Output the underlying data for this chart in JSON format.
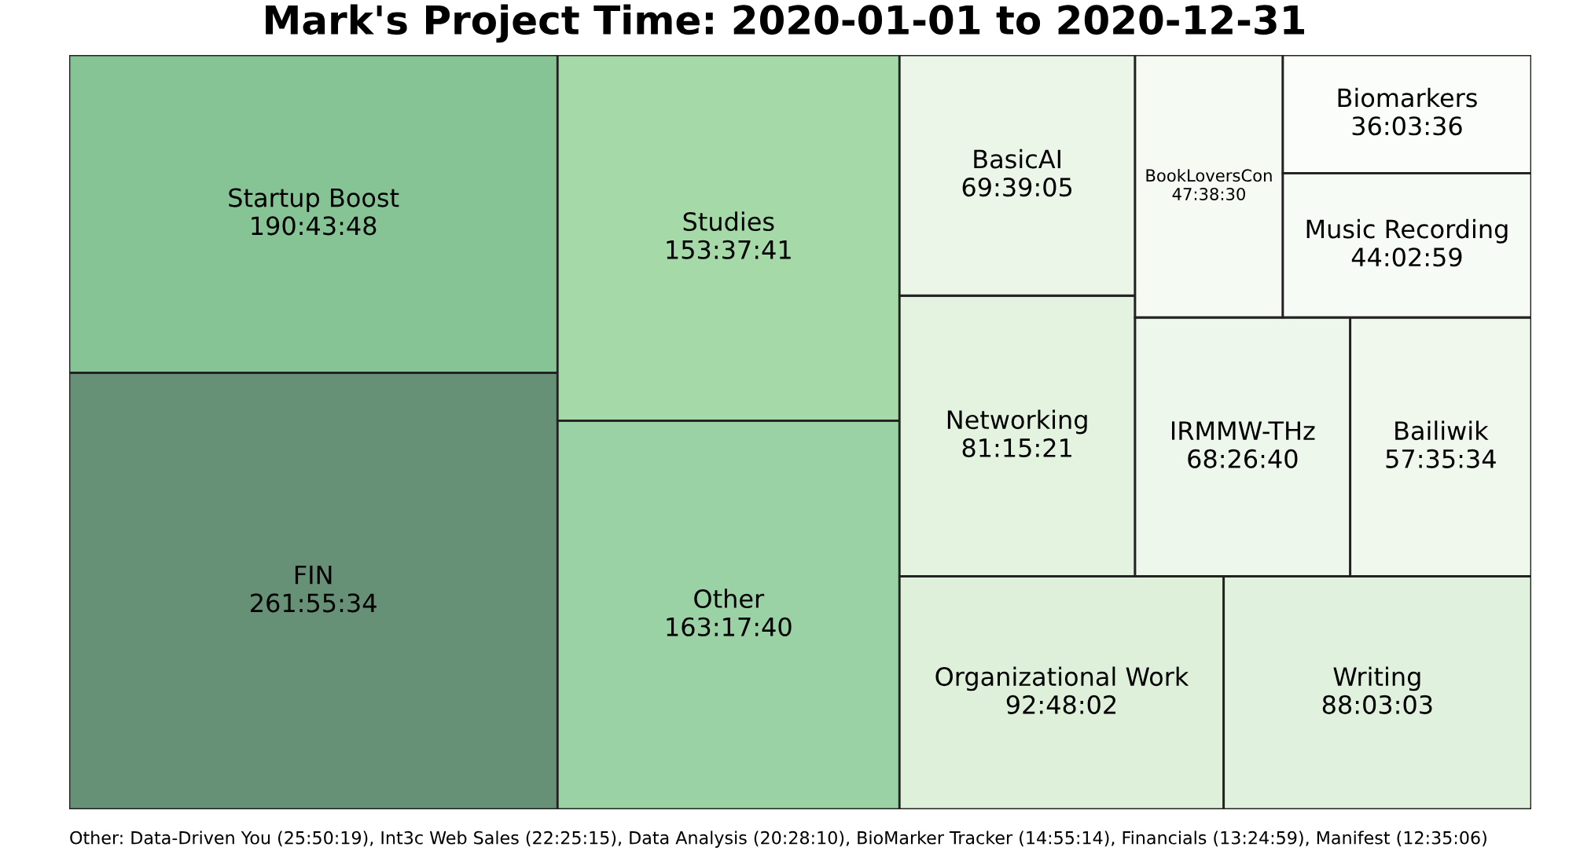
{
  "chart_data": {
    "type": "other",
    "title": "Mark's Project Time: 2020-01-01 to 2020-12-31",
    "categories": [
      "FIN",
      "Startup Boost",
      "Other",
      "Studies",
      "Organizational Work",
      "Writing",
      "Networking",
      "BasicAI",
      "IRMMW-THz",
      "Bailiwik",
      "BookLoversCon",
      "Music Recording",
      "Biomarkers"
    ],
    "values": [
      261.9261,
      190.73,
      163.2944,
      153.6281,
      92.8006,
      88.0508,
      81.2558,
      69.6514,
      68.4444,
      57.5928,
      47.6417,
      44.0497,
      36.06
    ],
    "value_labels": [
      "261:55:34",
      "190:43:48",
      "163:17:40",
      "153:37:41",
      "92:48:02",
      "88:03:03",
      "81:15:21",
      "69:39:05",
      "68:26:40",
      "57:35:34",
      "47:38:30",
      "44:02:59",
      "36:03:36"
    ],
    "colors": [
      "#679176",
      "#86c496",
      "#9bd2a5",
      "#a5d9a8",
      "#dff0da",
      "#e0f2dd",
      "#e3f3df",
      "#ebf6e8",
      "#eef7eb",
      "#f0f8ee",
      "#f5fbf3",
      "#f7fbf5",
      "#fafdf9"
    ],
    "annotations": [
      "Other: Data-Driven You (25:50:19), Int3c Web Sales (22:25:15), Data Analysis (20:28:10), BioMarker Tracker (14:55:14), Financials (13:24:59), Manifest (12:35:06)"
    ]
  }
}
